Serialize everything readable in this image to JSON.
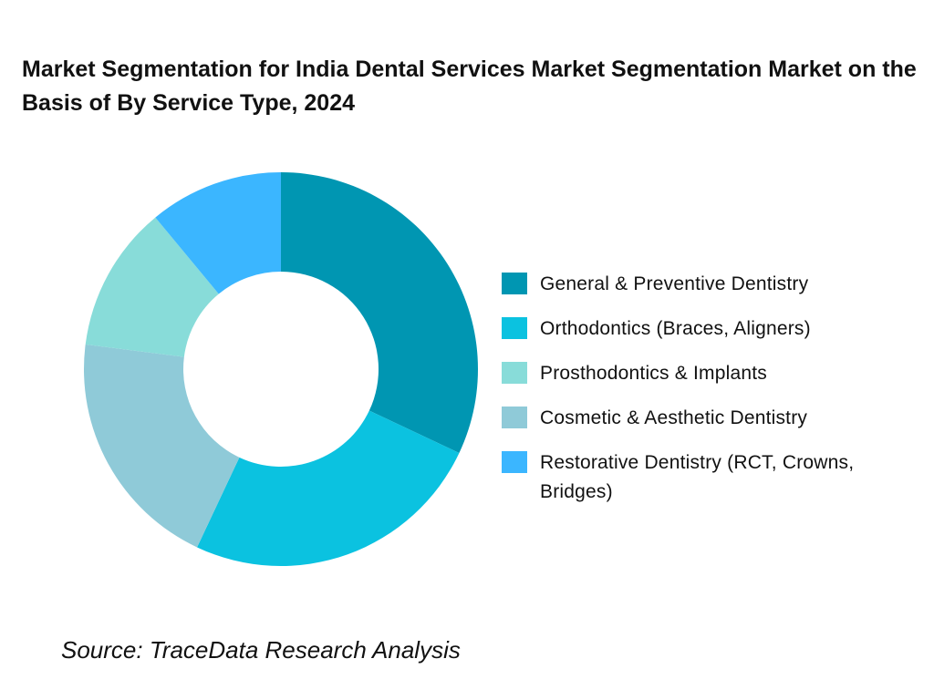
{
  "chart_data": {
    "type": "pie",
    "donut": true,
    "title": "Market Segmentation for India Dental Services Market Segmentation Market on the Basis of By Service Type, 2024",
    "categories": [
      "General & Preventive Dentistry",
      "Orthodontics (Braces, Aligners)",
      "Prosthodontics & Implants",
      "Cosmetic & Aesthetic Dentistry",
      "Restorative Dentistry (RCT, Crowns, Bridges)"
    ],
    "values": [
      32,
      25,
      12,
      20,
      11
    ],
    "colors": [
      "#0096B2",
      "#0BC2E0",
      "#88DCD9",
      "#8FCAD8",
      "#3BB6FF"
    ],
    "legend_position": "right",
    "source": "Source: TraceData Research Analysis"
  }
}
